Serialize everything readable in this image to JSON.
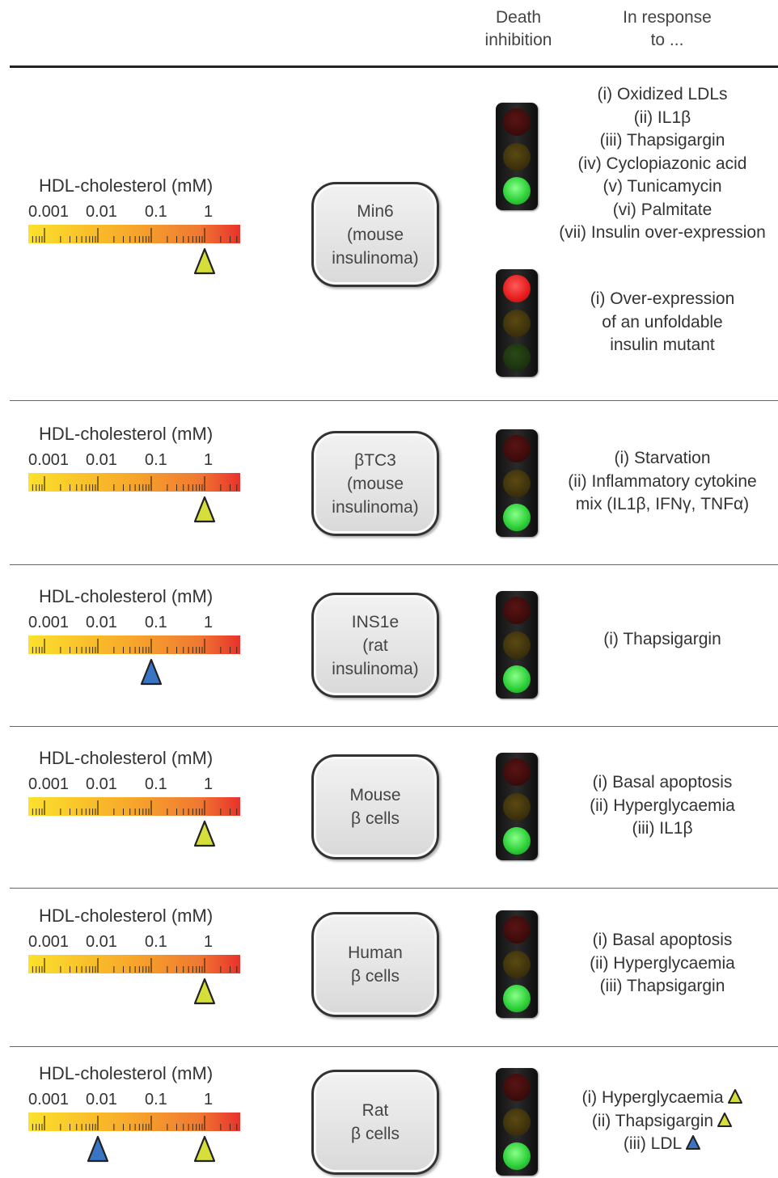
{
  "header": {
    "death_line1": "Death",
    "death_line2": "inhibition",
    "response_line1": "In response",
    "response_line2": "to ..."
  },
  "scale": {
    "title": "HDL-cholesterol (mM)",
    "ticks": [
      "0.001",
      "0.01",
      "0.1",
      "1"
    ]
  },
  "marker_colors": {
    "yellow": "#d6df3a",
    "blue": "#3a74c4"
  },
  "rows": [
    {
      "cell_lines": [
        "Min6",
        "(mouse",
        "insulinoma)"
      ],
      "markers": [
        {
          "value_mM": 1,
          "color": "yellow"
        }
      ],
      "lights": [
        {
          "state": "green",
          "responses": [
            "(i) Oxidized LDLs",
            "(ii) IL1β",
            "(iii) Thapsigargin",
            "(iv) Cyclopiazonic acid",
            "(v) Tunicamycin",
            "(vi) Palmitate",
            "(vii) Insulin over-expression"
          ]
        },
        {
          "state": "red",
          "responses": [
            "(i) Over-expression",
            "of an unfoldable",
            "insulin mutant"
          ]
        }
      ]
    },
    {
      "cell_lines": [
        "βTC3",
        "(mouse",
        "insulinoma)"
      ],
      "markers": [
        {
          "value_mM": 1,
          "color": "yellow"
        }
      ],
      "lights": [
        {
          "state": "green",
          "responses": [
            "(i) Starvation",
            "(ii) Inflammatory cytokine",
            "mix (IL1β, IFNγ, TNFα)"
          ]
        }
      ]
    },
    {
      "cell_lines": [
        "INS1e",
        "(rat",
        "insulinoma)"
      ],
      "markers": [
        {
          "value_mM": 0.1,
          "color": "blue"
        }
      ],
      "lights": [
        {
          "state": "green",
          "responses": [
            "(i) Thapsigargin"
          ]
        }
      ]
    },
    {
      "cell_lines": [
        "Mouse",
        "β cells"
      ],
      "markers": [
        {
          "value_mM": 1,
          "color": "yellow"
        }
      ],
      "lights": [
        {
          "state": "green",
          "responses": [
            "(i) Basal apoptosis",
            "(ii) Hyperglycaemia",
            "(iii) IL1β"
          ]
        }
      ]
    },
    {
      "cell_lines": [
        "Human",
        "β cells"
      ],
      "markers": [
        {
          "value_mM": 1,
          "color": "yellow"
        }
      ],
      "lights": [
        {
          "state": "green",
          "responses": [
            "(i) Basal apoptosis",
            "(ii) Hyperglycaemia",
            "(iii) Thapsigargin"
          ]
        }
      ]
    },
    {
      "cell_lines": [
        "Rat",
        "β cells"
      ],
      "markers": [
        {
          "value_mM": 0.01,
          "color": "blue"
        },
        {
          "value_mM": 1,
          "color": "yellow"
        }
      ],
      "lights": [
        {
          "state": "green",
          "responses": [
            "(i) Hyperglycaemia",
            "(ii) Thapsigargin",
            "(iii) LDL"
          ],
          "response_markers": [
            "yellow",
            "yellow",
            "blue"
          ]
        }
      ]
    }
  ]
}
